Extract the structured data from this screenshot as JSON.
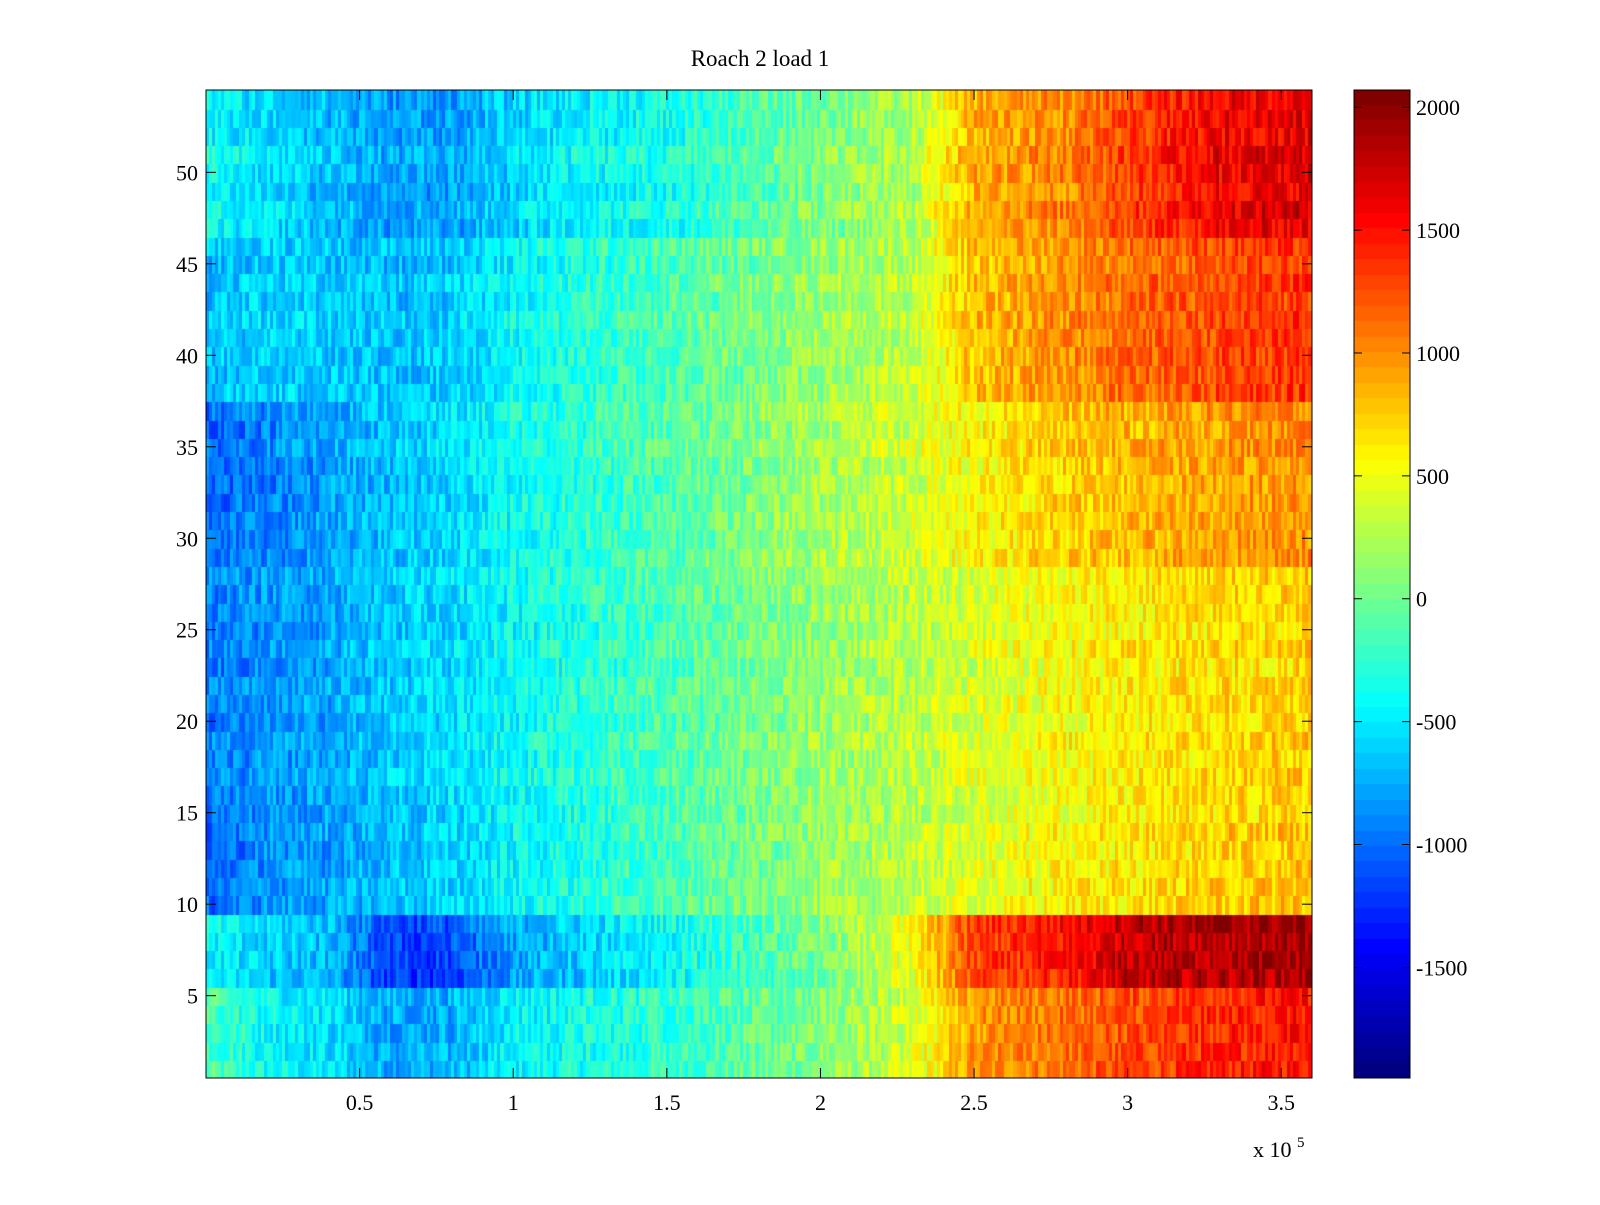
{
  "chart_data": {
    "type": "heatmap",
    "title": "Roach 2 load 1",
    "xlabel": "",
    "ylabel": "",
    "x_multiplier_label": "x 10",
    "x_multiplier_exponent": "5",
    "x_range": [
      0,
      360000
    ],
    "y_range": [
      0.5,
      54.5
    ],
    "rows": 54,
    "columns": 360,
    "x_ticks": [
      {
        "value": 50000,
        "label": "0.5"
      },
      {
        "value": 100000,
        "label": "1"
      },
      {
        "value": 150000,
        "label": "1.5"
      },
      {
        "value": 200000,
        "label": "2"
      },
      {
        "value": 250000,
        "label": "2.5"
      },
      {
        "value": 300000,
        "label": "3"
      },
      {
        "value": 350000,
        "label": "3.5"
      }
    ],
    "y_ticks": [
      {
        "value": 5,
        "label": "5"
      },
      {
        "value": 10,
        "label": "10"
      },
      {
        "value": 15,
        "label": "15"
      },
      {
        "value": 20,
        "label": "20"
      },
      {
        "value": 25,
        "label": "25"
      },
      {
        "value": 30,
        "label": "30"
      },
      {
        "value": 35,
        "label": "35"
      },
      {
        "value": 40,
        "label": "40"
      },
      {
        "value": 45,
        "label": "45"
      },
      {
        "value": 50,
        "label": "50"
      }
    ],
    "colorbar": {
      "colormap": "jet",
      "range": [
        -1950,
        2070
      ],
      "ticks": [
        {
          "value": 2000,
          "label": "2000"
        },
        {
          "value": 1500,
          "label": "1500"
        },
        {
          "value": 1000,
          "label": "1000"
        },
        {
          "value": 500,
          "label": "500"
        },
        {
          "value": 0,
          "label": "0"
        },
        {
          "value": -500,
          "label": "-500"
        },
        {
          "value": -1000,
          "label": "-1000"
        },
        {
          "value": -1500,
          "label": "-1500"
        }
      ]
    },
    "profile_x": [
      0,
      20000,
      40000,
      60000,
      80000,
      100000,
      120000,
      150000,
      200000,
      230000,
      250000,
      280000,
      300000,
      330000,
      360000
    ],
    "row_profiles": [
      {
        "rows": [
          1,
          5
        ],
        "values": [
          -150,
          -420,
          -560,
          -780,
          -760,
          -480,
          -380,
          -250,
          50,
          380,
          950,
          1120,
          1250,
          1420,
          1500
        ]
      },
      {
        "rows": [
          6,
          9
        ],
        "values": [
          -450,
          -620,
          -700,
          -1200,
          -1150,
          -800,
          -650,
          -420,
          30,
          500,
          1300,
          1500,
          1820,
          1900,
          1950
        ]
      },
      {
        "rows": [
          10,
          14
        ],
        "values": [
          -1100,
          -900,
          -850,
          -720,
          -650,
          -480,
          -380,
          -200,
          120,
          260,
          420,
          550,
          620,
          720,
          780
        ]
      },
      {
        "rows": [
          15,
          28
        ],
        "values": [
          -950,
          -850,
          -780,
          -650,
          -560,
          -420,
          -300,
          -120,
          150,
          300,
          420,
          560,
          620,
          700,
          760
        ]
      },
      {
        "rows": [
          29,
          37
        ],
        "values": [
          -1050,
          -950,
          -820,
          -700,
          -600,
          -420,
          -300,
          -120,
          200,
          360,
          560,
          740,
          820,
          930,
          1000
        ]
      },
      {
        "rows": [
          38,
          46
        ],
        "values": [
          -700,
          -620,
          -650,
          -700,
          -650,
          -450,
          -320,
          -150,
          150,
          300,
          800,
          980,
          1130,
          1280,
          1350
        ]
      },
      {
        "rows": [
          47,
          54
        ],
        "values": [
          -400,
          -550,
          -680,
          -820,
          -800,
          -600,
          -450,
          -350,
          50,
          250,
          900,
          1050,
          1300,
          1620,
          1700
        ]
      }
    ]
  }
}
